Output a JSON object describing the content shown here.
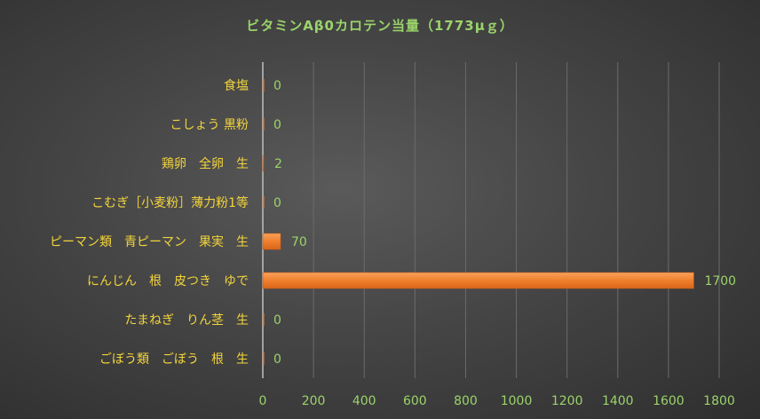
{
  "chart_data": {
    "type": "bar",
    "orientation": "horizontal",
    "title": "ビタミンAβ0カロテン当量（1773μｇ）",
    "categories": [
      "食塩",
      "こしょう 黒粉",
      "鶏卵　全卵　生",
      "こむぎ［小麦粉］薄力粉1等",
      "ピーマン類　青ピーマン　果実　生",
      "にんじん　根　皮つき　ゆで",
      "たまねぎ　りん茎　生",
      "ごぼう類　ごぼう　根　生"
    ],
    "values": [
      0,
      0,
      2,
      0,
      70,
      1700,
      0,
      0
    ],
    "xlim": [
      0,
      1800
    ],
    "xticks": [
      "0",
      "200",
      "400",
      "600",
      "800",
      "1000",
      "1200",
      "1400",
      "1600",
      "1800"
    ],
    "grid": true,
    "bar_color": "#f07f2c"
  }
}
